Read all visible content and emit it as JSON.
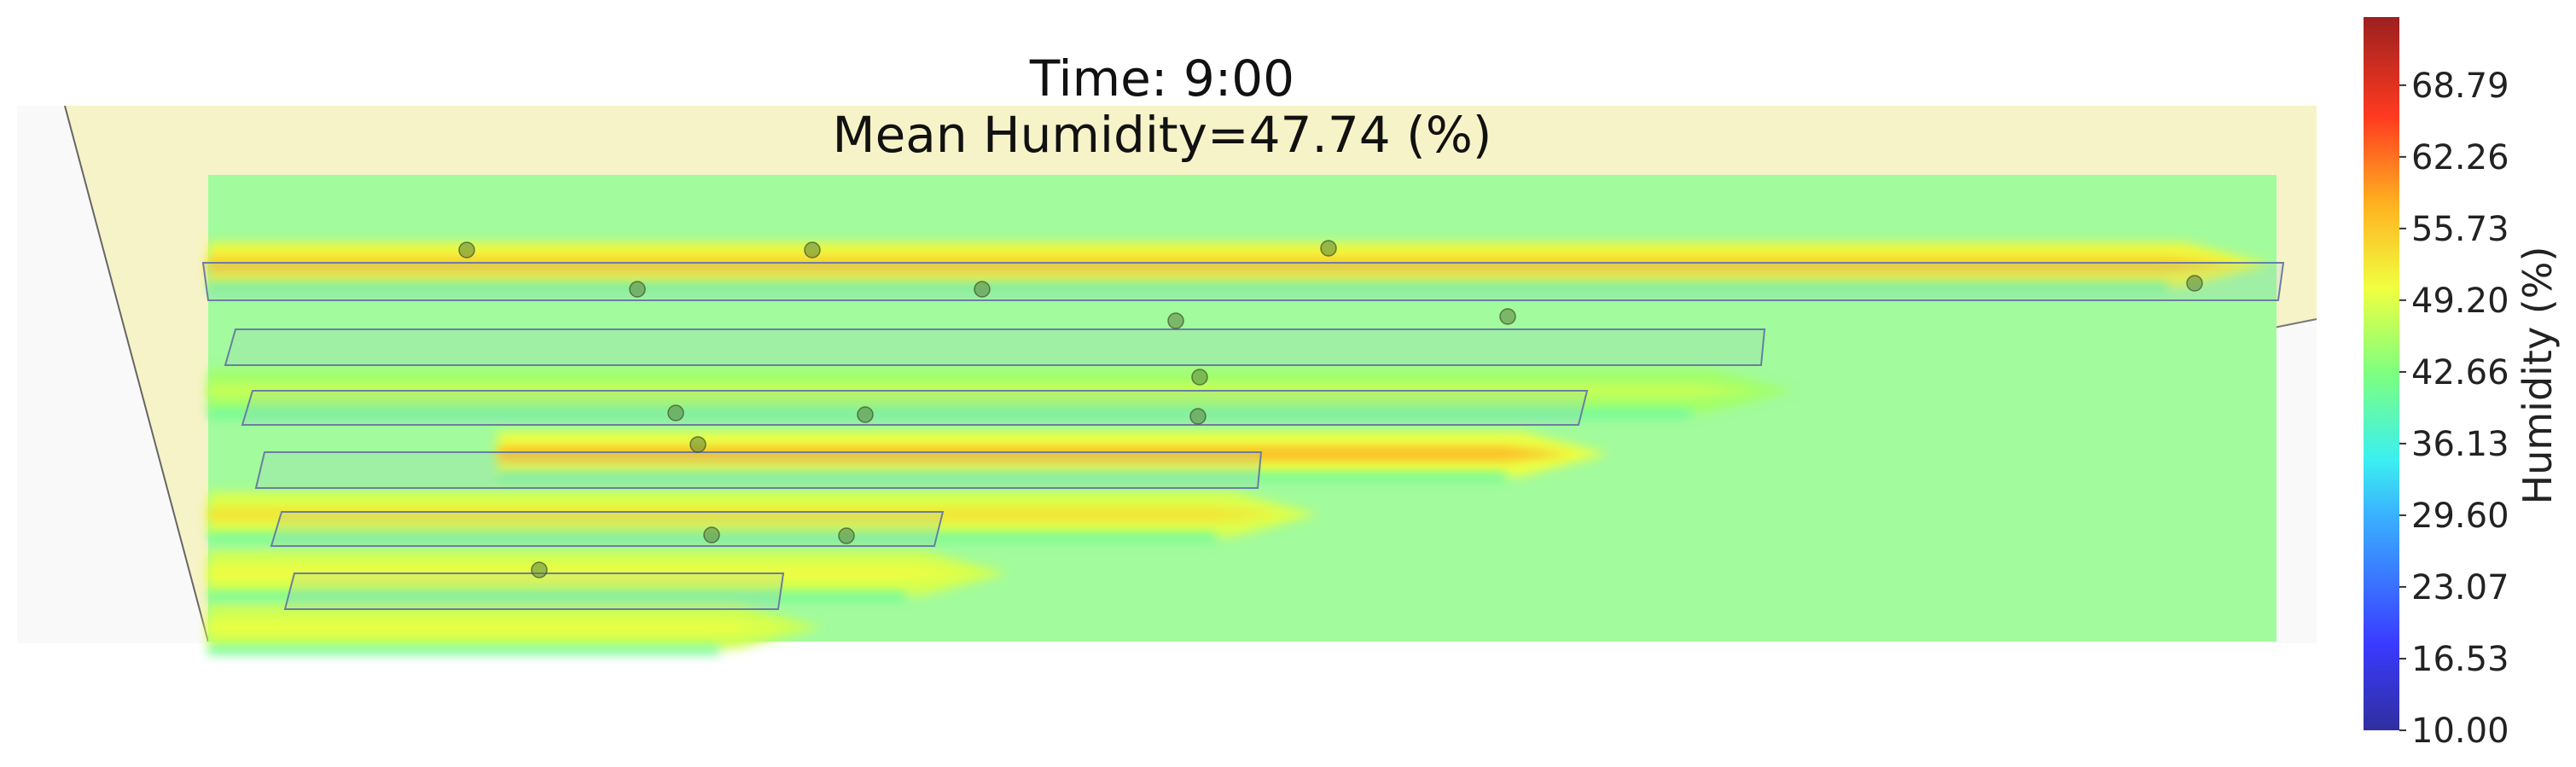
{
  "chart_data": {
    "type": "heatmap",
    "title_lines": [
      "Time: 9:00",
      "Mean Humidity=47.74 (%)"
    ],
    "time": "9:00",
    "mean_humidity": 47.74,
    "colorbar": {
      "label": "Humidity (%)",
      "ticks": [
        "10.00",
        "16.53",
        "23.07",
        "29.60",
        "36.13",
        "42.66",
        "49.20",
        "55.73",
        "62.26",
        "68.79"
      ],
      "range": [
        10.0,
        75.0
      ],
      "colormap": "jet"
    },
    "background_humidity": 44.5,
    "wall_color": "#f7f3c8",
    "field_color": "#a2fb9c",
    "rows": [
      {
        "peak": 55.5,
        "side": 51.0,
        "extent": 0.98
      },
      {
        "peak": 47.5,
        "side": 45.0,
        "extent": 0.75
      },
      {
        "peak": 57.0,
        "side": 50.0,
        "extent": 0.66
      },
      {
        "peak": 53.0,
        "side": 49.0,
        "extent": 0.52
      },
      {
        "peak": 50.5,
        "side": 48.5,
        "extent": 0.37
      },
      {
        "peak": 50.0,
        "side": 48.0,
        "extent": 0.28
      }
    ]
  }
}
